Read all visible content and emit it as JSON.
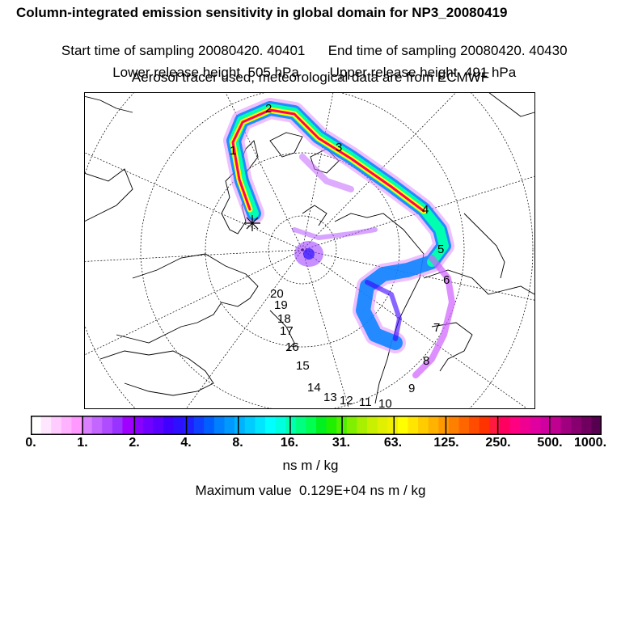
{
  "header": {
    "title": "Column-integrated emission sensitivity in global domain for NP3_20080419",
    "start_label": "Start time of sampling 20080420. 40401",
    "end_label": "End time of sampling 20080420. 40430",
    "lower_label": "Lower release height  505 hPa",
    "upper_label": "Upper release height  491 hPa",
    "tracer_note": "Aerosol tracer used, meteorological data are from ECMWF"
  },
  "map": {
    "track_labels": [
      "1",
      "2",
      "3",
      "4",
      "5",
      "6",
      "7",
      "8",
      "9",
      "10",
      "11",
      "12",
      "13",
      "14",
      "15",
      "16",
      "17",
      "18",
      "19",
      "20"
    ]
  },
  "colorbar": {
    "ticks": [
      "0.",
      "1.",
      "2.",
      "4.",
      "8.",
      "16.",
      "31.",
      "63.",
      "125.",
      "250.",
      "500.",
      "1000."
    ],
    "unit": "ns m / kg",
    "max_text": "Maximum value  0.129E+04 ns m / kg",
    "colors": [
      "#ffffff",
      "#ffe6ff",
      "#ffccff",
      "#ffb3ff",
      "#ff99ff",
      "#d97fff",
      "#c266ff",
      "#b04cff",
      "#9933ff",
      "#a000ff",
      "#8a00ff",
      "#7000ff",
      "#5a00ff",
      "#4000ff",
      "#2d10ff",
      "#1f1fff",
      "#1040ff",
      "#0060ff",
      "#0080ff",
      "#0099ff",
      "#00b3ff",
      "#00ccff",
      "#00e6ff",
      "#00ffff",
      "#00ffe0",
      "#00ffb0",
      "#00ff80",
      "#00ff50",
      "#00f020",
      "#20f000",
      "#50f000",
      "#80f000",
      "#a8f000",
      "#c8f000",
      "#e0f000",
      "#f0f000",
      "#ffff00",
      "#ffe600",
      "#ffcc00",
      "#ffb300",
      "#ff9900",
      "#ff8000",
      "#ff6600",
      "#ff4c00",
      "#ff3300",
      "#ff1a40",
      "#ff0060",
      "#ff0080",
      "#f00090",
      "#e000a0",
      "#d000a0",
      "#c00090",
      "#a00080",
      "#880070",
      "#700060",
      "#580050"
    ]
  }
}
